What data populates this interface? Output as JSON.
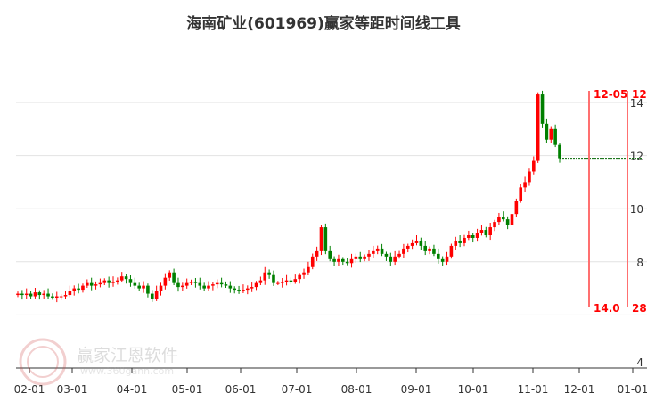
{
  "title": "海南矿业(601969)赢家等距时间线工具",
  "watermark": {
    "text": "赢家江恩软件",
    "url": "www.360gann.com"
  },
  "chart_data": {
    "type": "candlestick",
    "title": "海南矿业(601969)赢家等距时间线工具",
    "ylim": [
      4,
      14.6
    ],
    "y_ticks": [
      4,
      6,
      8,
      10,
      12,
      14
    ],
    "y_tick_labels": [
      "4",
      "",
      "8",
      "10",
      "12",
      "14"
    ],
    "x_tick_labels": [
      "02-01",
      "03-01",
      "04-01",
      "05-01",
      "06-01",
      "07-01",
      "08-01",
      "09-01",
      "10-01",
      "11-01",
      "12-01",
      "01-01"
    ],
    "grid": true,
    "colors": {
      "up": "#ff0000",
      "down": "#008000",
      "timeline": "#ff7070",
      "label": "#ff0000",
      "lastprice": "#006600"
    },
    "closes": [
      6.8,
      6.75,
      6.8,
      6.7,
      6.85,
      6.75,
      6.8,
      6.7,
      6.65,
      6.7,
      6.7,
      6.75,
      6.9,
      7.0,
      6.95,
      7.1,
      7.2,
      7.1,
      7.15,
      7.2,
      7.3,
      7.2,
      7.25,
      7.3,
      7.45,
      7.35,
      7.2,
      7.1,
      7.0,
      7.1,
      6.8,
      6.6,
      6.9,
      7.1,
      7.4,
      7.6,
      7.2,
      7.05,
      7.1,
      7.2,
      7.25,
      7.2,
      7.1,
      7.0,
      7.1,
      7.15,
      7.2,
      7.15,
      7.1,
      7.0,
      6.95,
      6.9,
      6.95,
      7.0,
      7.05,
      7.2,
      7.3,
      7.6,
      7.5,
      7.2,
      7.2,
      7.25,
      7.3,
      7.25,
      7.35,
      7.5,
      7.6,
      7.8,
      8.2,
      8.4,
      9.3,
      8.4,
      8.1,
      8.0,
      8.1,
      8.0,
      7.95,
      8.1,
      8.2,
      8.1,
      8.2,
      8.3,
      8.4,
      8.5,
      8.3,
      8.2,
      8.0,
      8.2,
      8.3,
      8.5,
      8.6,
      8.7,
      8.8,
      8.6,
      8.4,
      8.5,
      8.3,
      8.1,
      8.0,
      8.2,
      8.6,
      8.8,
      8.7,
      8.9,
      9.0,
      8.9,
      9.1,
      9.2,
      9.0,
      9.3,
      9.5,
      9.7,
      9.6,
      9.4,
      9.8,
      10.3,
      10.8,
      11.0,
      11.4,
      11.8,
      14.3,
      13.2,
      12.6,
      13.0,
      12.4,
      11.9
    ],
    "last_price": 11.9,
    "timelines": [
      {
        "date_label": "12-05",
        "value_label": "14.0"
      },
      {
        "date_label": "12-",
        "value_label": "28."
      }
    ]
  }
}
